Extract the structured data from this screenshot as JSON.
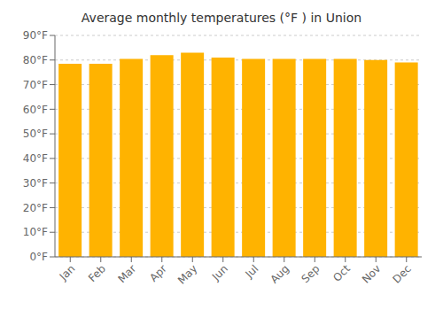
{
  "chart_data": {
    "type": "bar",
    "title": "Average monthly temperatures (°F ) in Union",
    "categories": [
      "Jan",
      "Feb",
      "Mar",
      "Apr",
      "May",
      "Jun",
      "Jul",
      "Aug",
      "Sep",
      "Oct",
      "Nov",
      "Dec"
    ],
    "values": [
      78.5,
      78.5,
      80.5,
      82.0,
      83.0,
      81.0,
      80.5,
      80.5,
      80.5,
      80.5,
      80.0,
      79.0
    ],
    "color": "#FFB300",
    "ylim": [
      0,
      90
    ],
    "yticks": [
      {
        "value": 0,
        "label": "0°F"
      },
      {
        "value": 10,
        "label": "10°F"
      },
      {
        "value": 20,
        "label": "20°F"
      },
      {
        "value": 30,
        "label": "30°F"
      },
      {
        "value": 40,
        "label": "40°F"
      },
      {
        "value": 50,
        "label": "50°F"
      },
      {
        "value": 60,
        "label": "60°F"
      },
      {
        "value": 70,
        "label": "70°F"
      },
      {
        "value": 80,
        "label": "80°F"
      },
      {
        "value": 90,
        "label": "90°F"
      }
    ],
    "grid": true
  }
}
